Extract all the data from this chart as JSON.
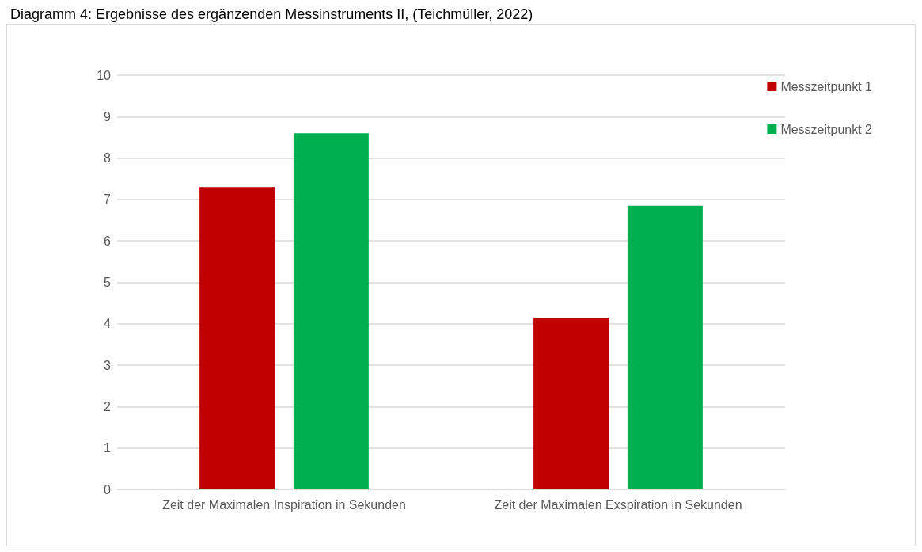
{
  "chart_data": {
    "type": "bar",
    "title": "Diagramm 4: Ergebnisse des ergänzenden Messinstruments II, (Teichmüller, 2022)",
    "categories": [
      "Zeit der Maximalen Inspiration in Sekunden",
      "Zeit der Maximalen Exspiration in Sekunden"
    ],
    "series": [
      {
        "name": "Messzeitpunkt 1",
        "color": "#c00000",
        "values": [
          7.3,
          4.15
        ]
      },
      {
        "name": "Messzeitpunkt 2",
        "color": "#00b050",
        "values": [
          8.6,
          6.85
        ]
      }
    ],
    "ylim": [
      0,
      10
    ],
    "yticks": [
      0,
      1,
      2,
      3,
      4,
      5,
      6,
      7,
      8,
      9,
      10
    ],
    "grid": "y",
    "legend": "top right"
  }
}
